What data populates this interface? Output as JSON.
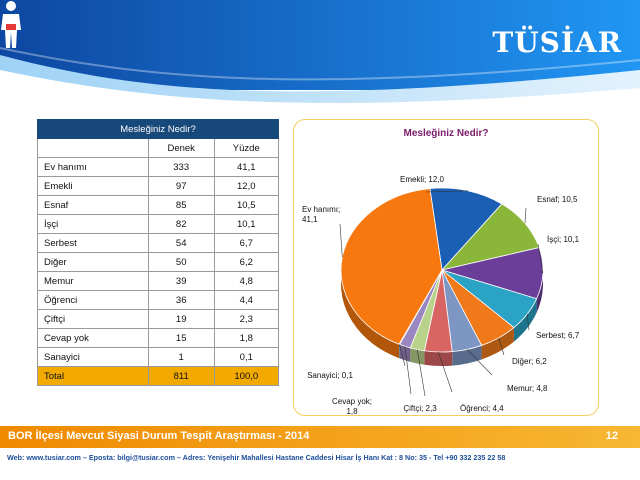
{
  "brand": {
    "logo_text": "TÜSİAR"
  },
  "table": {
    "caption": "Mesleğiniz Nedir?",
    "headers": [
      "",
      "Denek",
      "Yüzde"
    ],
    "rows": [
      {
        "label": "Ev hanımı",
        "count": "333",
        "pct": "41,1"
      },
      {
        "label": "Emekli",
        "count": "97",
        "pct": "12,0"
      },
      {
        "label": "Esnaf",
        "count": "85",
        "pct": "10,5"
      },
      {
        "label": "İşçi",
        "count": "82",
        "pct": "10,1"
      },
      {
        "label": "Serbest",
        "count": "54",
        "pct": "6,7"
      },
      {
        "label": "Diğer",
        "count": "50",
        "pct": "6,2"
      },
      {
        "label": "Memur",
        "count": "39",
        "pct": "4,8"
      },
      {
        "label": "Öğrenci",
        "count": "36",
        "pct": "4,4"
      },
      {
        "label": "Çiftçi",
        "count": "19",
        "pct": "2,3"
      },
      {
        "label": "Cevap yok",
        "count": "15",
        "pct": "1,8"
      },
      {
        "label": "Sanayici",
        "count": "1",
        "pct": "0,1"
      }
    ],
    "total": {
      "label": "Total",
      "count": "811",
      "pct": "100,0"
    }
  },
  "chart_data": {
    "type": "pie",
    "title": "Mesleğiniz Nedir?",
    "slices": [
      {
        "label": "Emekli",
        "value": 12.0,
        "text": "Emekli; 12,0",
        "color": "#1a5fb4"
      },
      {
        "label": "Esnaf",
        "value": 10.5,
        "text": "Esnaf; 10,5",
        "color": "#8ab63a"
      },
      {
        "label": "İşçi",
        "value": 10.1,
        "text": "İşçi; 10,1",
        "color": "#6b3f99"
      },
      {
        "label": "Serbest",
        "value": 6.7,
        "text": "Serbest; 6,7",
        "color": "#2aa3c4"
      },
      {
        "label": "Diğer",
        "value": 6.2,
        "text": "Diğer; 6,2",
        "color": "#f07a1a"
      },
      {
        "label": "Memur",
        "value": 4.8,
        "text": "Memur; 4,8",
        "color": "#7d96c4"
      },
      {
        "label": "Öğrenci",
        "value": 4.4,
        "text": "Öğrenci; 4,4",
        "color": "#d96464"
      },
      {
        "label": "Çiftçi",
        "value": 2.3,
        "text": "Çiftçi; 2,3",
        "color": "#b9d28a"
      },
      {
        "label": "Cevap yok",
        "value": 1.8,
        "text": "Cevap yok; 1,8",
        "color": "#9a86c0"
      },
      {
        "label": "Sanayici",
        "value": 0.1,
        "text": "Sanayici; 0,1",
        "color": "#5cb8cf"
      },
      {
        "label": "Ev hanımı",
        "value": 41.1,
        "text": "Ev hanımı; 41,1",
        "color": "#f7780e"
      }
    ],
    "legend": "none"
  },
  "footer": {
    "title": "BOR İlçesi Mevcut Siyasi Durum Tespit Araştırması - 2014",
    "page": "12",
    "contact": "Web: www.tusiar.com  –  Eposta: bilgi@tusiar.com  –  Adres: Yenişehir Mahallesi Hastane Caddesi Hisar İş Hanı Kat : 8 No: 35  - Tel +90 332 235 22 58"
  },
  "colors": {
    "header_blue": "#1565c0",
    "footer_orange": "#f08a00",
    "table_header": "#17497a",
    "total_row": "#f2a900"
  }
}
